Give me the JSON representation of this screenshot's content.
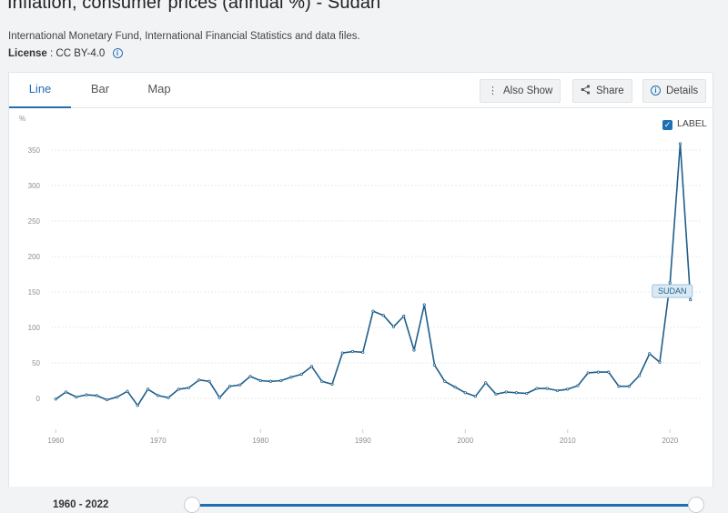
{
  "header": {
    "title": "Inflation, consumer prices (annual %) - Sudan",
    "source": "International Monetary Fund, International Financial Statistics and data files.",
    "license_label": "License",
    "license_value": ": CC BY-4.0",
    "info_glyph": "i"
  },
  "tabs": [
    {
      "label": "Line",
      "active": true
    },
    {
      "label": "Bar",
      "active": false
    },
    {
      "label": "Map",
      "active": false
    }
  ],
  "toolbar": {
    "also_show": {
      "label": "Also Show",
      "icon": "vertical-dots-icon",
      "glyph": "⋮"
    },
    "share": {
      "label": "Share",
      "icon": "share-icon"
    },
    "details": {
      "label": "Details",
      "icon": "info-icon",
      "glyph": "i"
    }
  },
  "legend": {
    "label": "LABEL",
    "checked": true,
    "check_glyph": "✓"
  },
  "colors": {
    "line": "#1f5f8b",
    "accent": "#1f6fb3",
    "grid": "#e6e8eb",
    "axis_text": "#8a8f95"
  },
  "chart_data": {
    "type": "line",
    "ylabel": "%",
    "ylim": [
      -20,
      360
    ],
    "yticks": [
      0,
      50,
      100,
      150,
      200,
      250,
      300,
      350
    ],
    "xlim": [
      1959,
      2023
    ],
    "xticks": [
      1960,
      1970,
      1980,
      1990,
      2000,
      2010,
      2020
    ],
    "grid": true,
    "series": [
      {
        "name": "SUDAN",
        "x": [
          1960,
          1961,
          1962,
          1963,
          1964,
          1965,
          1966,
          1967,
          1968,
          1969,
          1970,
          1971,
          1972,
          1973,
          1974,
          1975,
          1976,
          1977,
          1978,
          1979,
          1980,
          1981,
          1982,
          1983,
          1984,
          1985,
          1986,
          1987,
          1988,
          1989,
          1990,
          1991,
          1992,
          1993,
          1994,
          1995,
          1996,
          1997,
          1998,
          1999,
          2000,
          2001,
          2002,
          2003,
          2004,
          2005,
          2006,
          2007,
          2008,
          2009,
          2010,
          2011,
          2012,
          2013,
          2014,
          2015,
          2016,
          2017,
          2018,
          2019,
          2020,
          2021,
          2022
        ],
        "values": [
          -1,
          9,
          2,
          5,
          4,
          -2,
          2,
          10,
          -10,
          13,
          4,
          1,
          13,
          15,
          26,
          24,
          1,
          17,
          19,
          31,
          25,
          24,
          25,
          30,
          34,
          45,
          24,
          20,
          64,
          66,
          65,
          123,
          117,
          101,
          116,
          68,
          132,
          47,
          24,
          16,
          8,
          3,
          22,
          6,
          9,
          8,
          7,
          14,
          14,
          11,
          13,
          18,
          36,
          37,
          37,
          17,
          17,
          32,
          63,
          51,
          163,
          359,
          139
        ]
      }
    ],
    "end_label": "SUDAN"
  },
  "range": {
    "label": "1960 - 2022",
    "handle_glyph": "|||"
  }
}
